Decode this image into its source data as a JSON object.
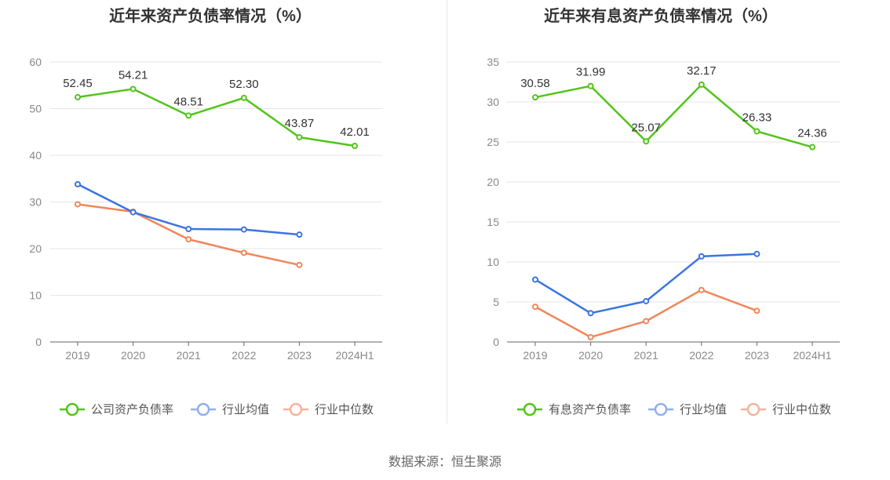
{
  "source": "数据来源：恒生聚源",
  "chart_data": [
    {
      "type": "line",
      "title": "近年来资产负债率情况（%）",
      "categories": [
        "2019",
        "2020",
        "2021",
        "2022",
        "2023",
        "2024H1"
      ],
      "ylim": [
        0,
        60
      ],
      "yticks": [
        0,
        10,
        20,
        30,
        40,
        50,
        60
      ],
      "grid": true,
      "legend_position": "bottom",
      "series": [
        {
          "name": "公司资产负债率",
          "color": "#52c41a",
          "values": [
            52.45,
            54.21,
            48.51,
            52.3,
            43.87,
            42.01
          ],
          "labels": [
            "52.45",
            "54.21",
            "48.51",
            "52.30",
            "43.87",
            "42.01"
          ]
        },
        {
          "name": "行业均值",
          "color": "#3a75e0",
          "values": [
            33.8,
            27.8,
            24.2,
            24.1,
            23.0,
            null
          ]
        },
        {
          "name": "行业中位数",
          "color": "#f0865a",
          "values": [
            29.5,
            27.9,
            22.0,
            19.1,
            16.5,
            null
          ]
        }
      ]
    },
    {
      "type": "line",
      "title": "近年来有息资产负债率情况（%）",
      "categories": [
        "2019",
        "2020",
        "2021",
        "2022",
        "2023",
        "2024H1"
      ],
      "ylim": [
        0,
        35
      ],
      "yticks": [
        0,
        5,
        10,
        15,
        20,
        25,
        30,
        35
      ],
      "grid": true,
      "legend_position": "bottom",
      "series": [
        {
          "name": "有息资产负债率",
          "color": "#52c41a",
          "values": [
            30.58,
            31.99,
            25.07,
            32.17,
            26.33,
            24.36
          ],
          "labels": [
            "30.58",
            "31.99",
            "25.07",
            "32.17",
            "26.33",
            "24.36"
          ]
        },
        {
          "name": "行业均值",
          "color": "#3a75e0",
          "values": [
            7.8,
            3.6,
            5.1,
            10.7,
            11.0,
            null
          ]
        },
        {
          "name": "行业中位数",
          "color": "#f0865a",
          "values": [
            4.4,
            0.6,
            2.6,
            6.5,
            3.9,
            null
          ]
        }
      ]
    }
  ]
}
